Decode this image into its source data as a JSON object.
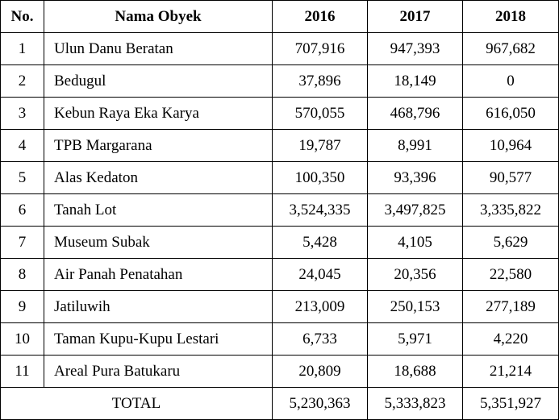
{
  "table": {
    "headers": {
      "no": "No.",
      "name": "Nama Obyek",
      "y2016": "2016",
      "y2017": "2017",
      "y2018": "2018"
    },
    "rows": [
      {
        "no": "1",
        "name": "Ulun Danu Beratan",
        "y2016": "707,916",
        "y2017": "947,393",
        "y2018": "967,682"
      },
      {
        "no": "2",
        "name": "Bedugul",
        "y2016": "37,896",
        "y2017": "18,149",
        "y2018": "0"
      },
      {
        "no": "3",
        "name": "Kebun Raya Eka Karya",
        "y2016": "570,055",
        "y2017": "468,796",
        "y2018": "616,050"
      },
      {
        "no": "4",
        "name": "TPB Margarana",
        "y2016": "19,787",
        "y2017": "8,991",
        "y2018": "10,964"
      },
      {
        "no": "5",
        "name": "Alas Kedaton",
        "y2016": "100,350",
        "y2017": "93,396",
        "y2018": "90,577"
      },
      {
        "no": "6",
        "name": "Tanah Lot",
        "y2016": "3,524,335",
        "y2017": "3,497,825",
        "y2018": "3,335,822"
      },
      {
        "no": "7",
        "name": "Museum Subak",
        "y2016": "5,428",
        "y2017": "4,105",
        "y2018": "5,629"
      },
      {
        "no": "8",
        "name": "Air Panah Penatahan",
        "y2016": "24,045",
        "y2017": "20,356",
        "y2018": "22,580"
      },
      {
        "no": "9",
        "name": "Jatiluwih",
        "y2016": "213,009",
        "y2017": "250,153",
        "y2018": "277,189"
      },
      {
        "no": "10",
        "name": "Taman Kupu-Kupu Lestari",
        "y2016": "6,733",
        "y2017": "5,971",
        "y2018": "4,220"
      },
      {
        "no": "11",
        "name": "Areal Pura Batukaru",
        "y2016": "20,809",
        "y2017": "18,688",
        "y2018": "21,214"
      }
    ],
    "total": {
      "label": "TOTAL",
      "y2016": "5,230,363",
      "y2017": "5,333,823",
      "y2018": "5,351,927"
    }
  }
}
